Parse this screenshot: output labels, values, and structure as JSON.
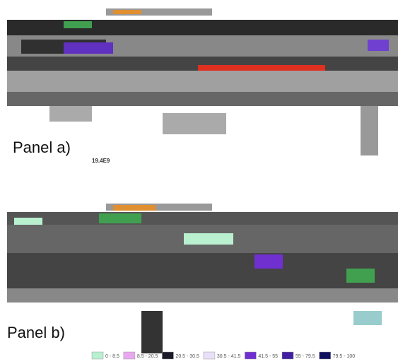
{
  "panels": [
    {
      "label": "Panel a)",
      "note": "19.4E9"
    },
    {
      "label": "Panel b)"
    }
  ],
  "legend": [
    {
      "label": "0 - 8.5",
      "color": "#b8f0d0"
    },
    {
      "label": "8.5 - 20.5",
      "color": "#e8a8f0"
    },
    {
      "label": "20.5 - 30.5",
      "color": "#1a1a2a"
    },
    {
      "label": "30.5 - 41.5",
      "color": "#e8e0f8"
    },
    {
      "label": "41.5 - 55",
      "color": "#7030d0"
    },
    {
      "label": "55 - 79.5",
      "color": "#4020a0"
    },
    {
      "label": "79.5 - 100",
      "color": "#101060"
    }
  ]
}
